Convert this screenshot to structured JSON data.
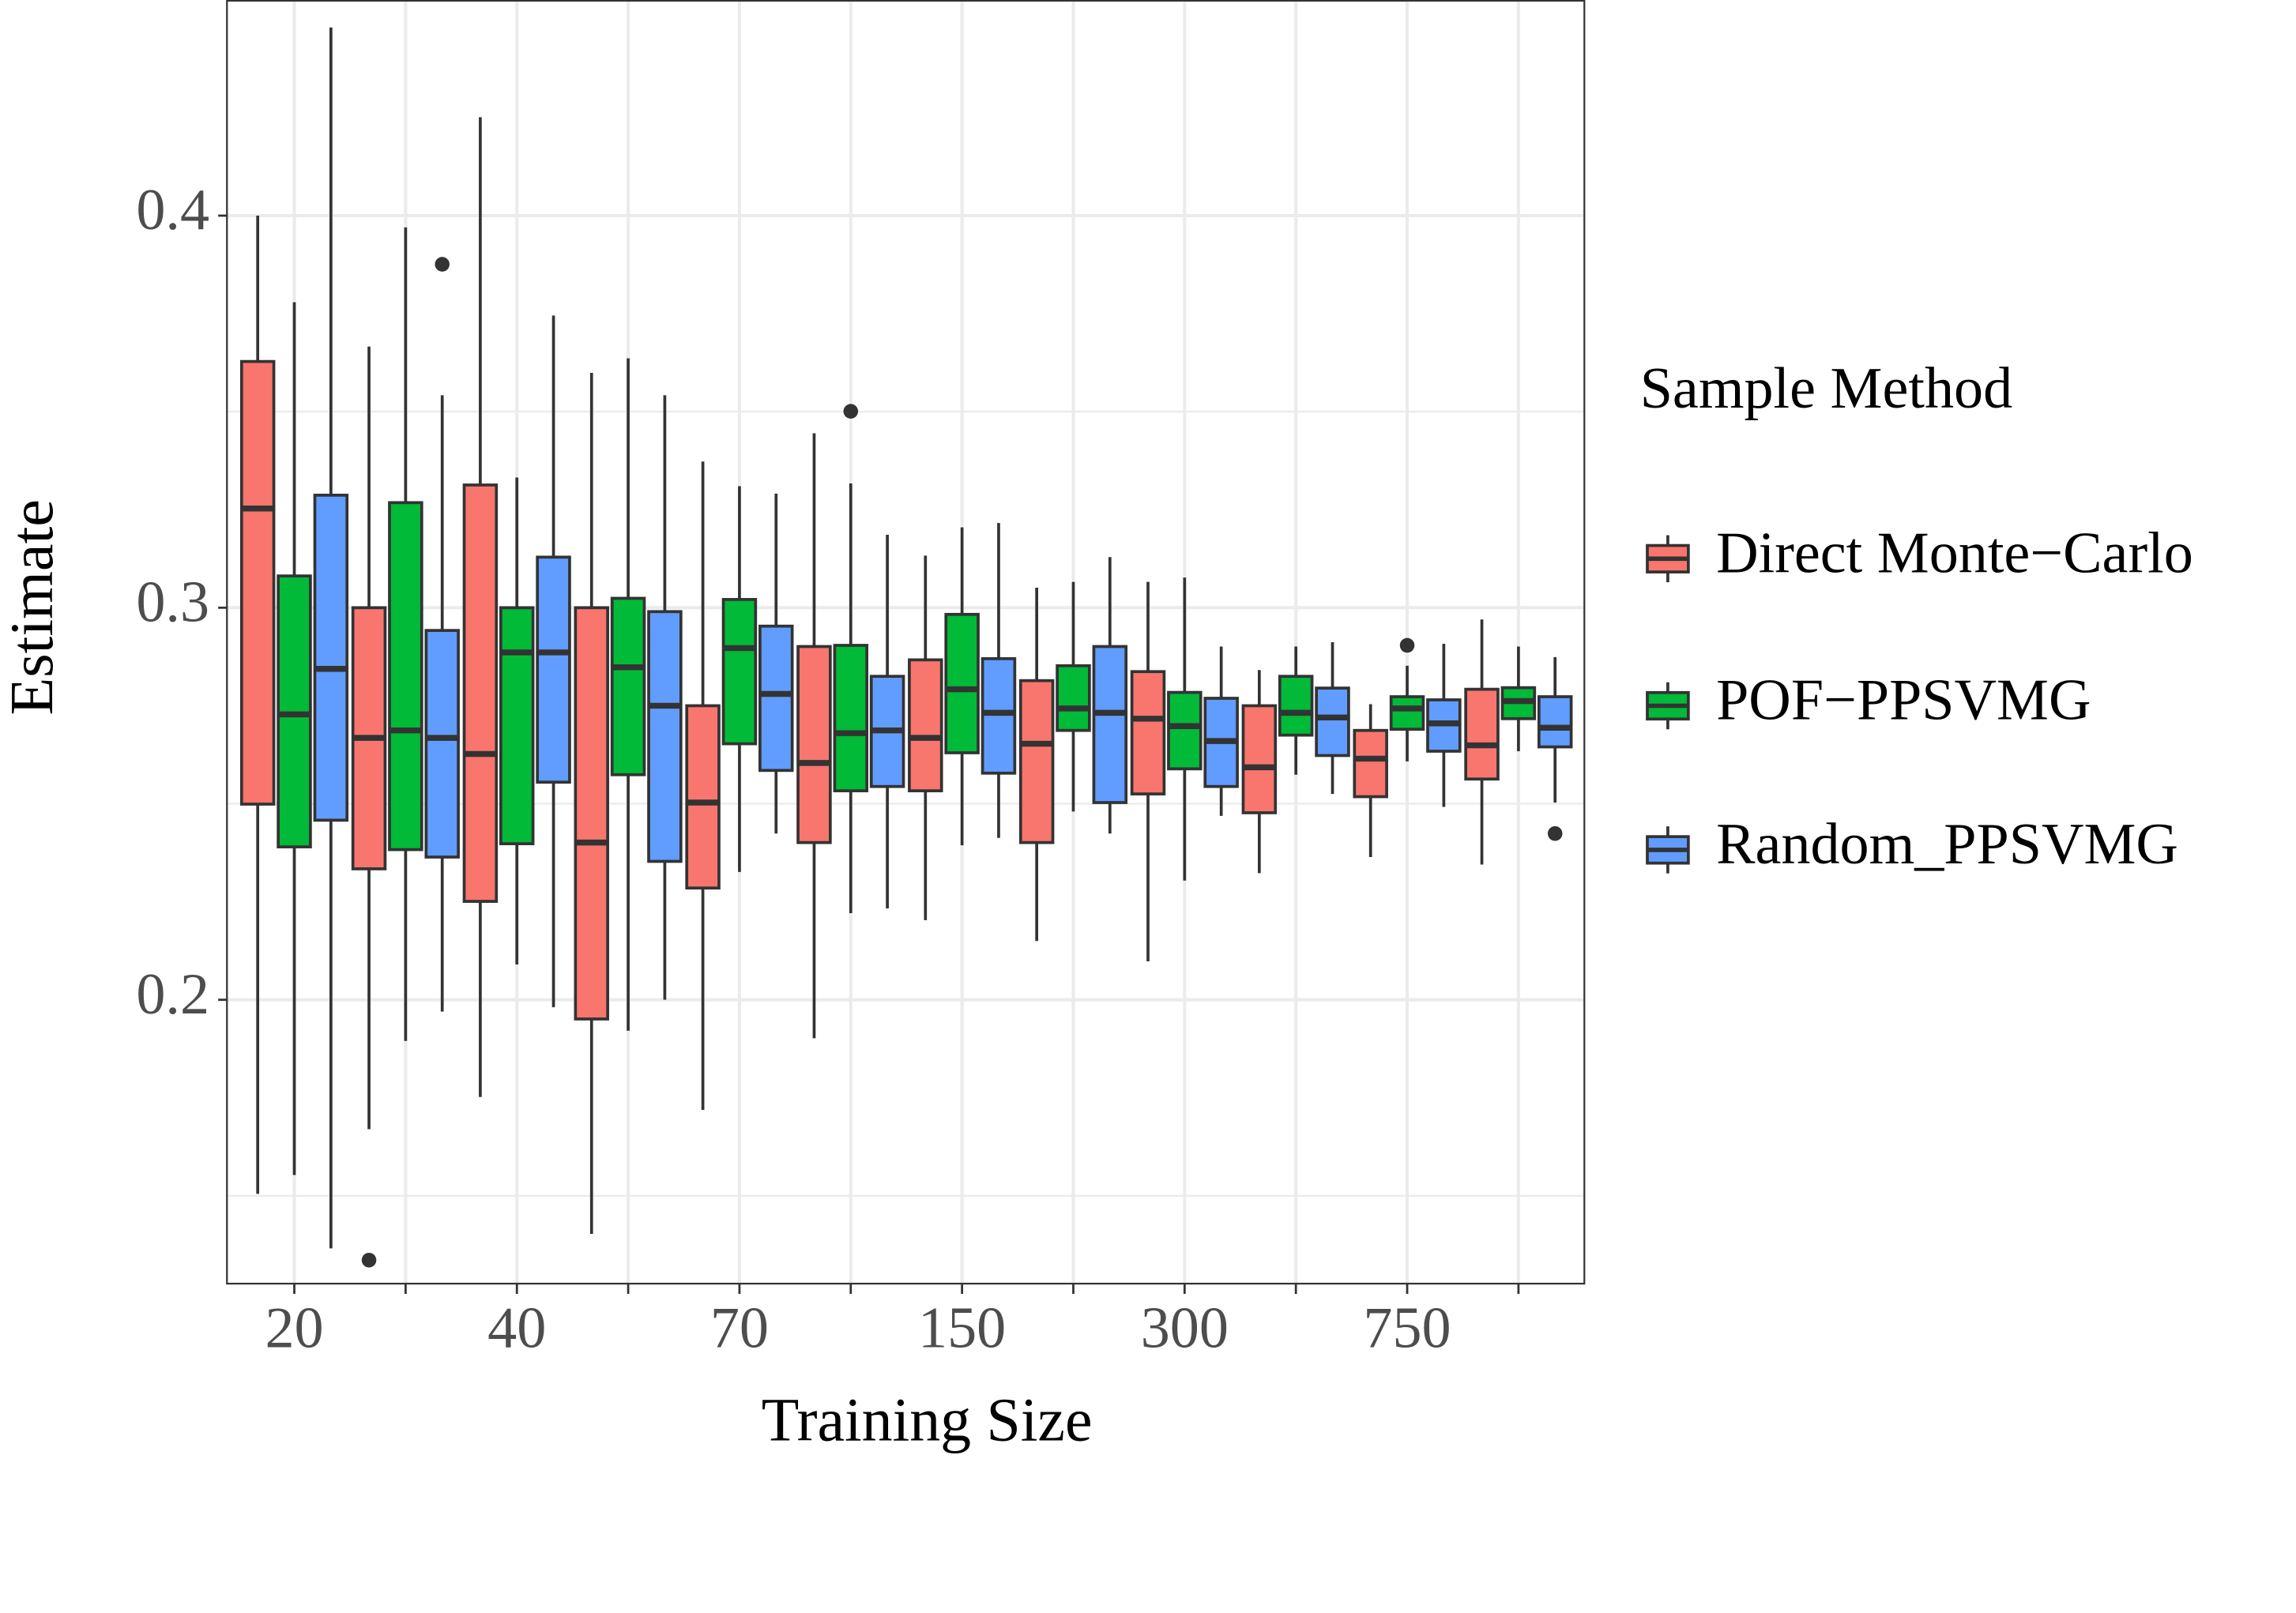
{
  "chart_data": {
    "type": "boxplot",
    "x_label": "Training Size",
    "y_label": "Estimate",
    "legend_title": "Sample Method",
    "legend_position": "right",
    "categories": [
      "20",
      null,
      "40",
      null,
      "70",
      null,
      "150",
      null,
      "300",
      null,
      "750",
      null
    ],
    "ylim": [
      0.1276,
      0.455
    ],
    "yticks": [
      0.2,
      0.3,
      0.4
    ],
    "y_minor_grid": [
      0.15,
      0.25,
      0.35
    ],
    "grid": true,
    "series": [
      {
        "name": "Direct Monte−Carlo",
        "color": "#F8766D",
        "low": [
          0.1505,
          0.167,
          0.1752,
          0.1403,
          0.1719,
          0.1902,
          0.2203,
          0.215,
          0.2098,
          0.2323,
          0.2364,
          0.2345
        ],
        "q1": [
          0.2499,
          0.2334,
          0.2251,
          0.1951,
          0.2285,
          0.2401,
          0.2533,
          0.2401,
          0.2525,
          0.2477,
          0.2518,
          0.2563
        ],
        "median": [
          0.3253,
          0.2668,
          0.2627,
          0.2401,
          0.2503,
          0.2604,
          0.2668,
          0.2653,
          0.2717,
          0.2593,
          0.2615,
          0.2649
        ],
        "q3": [
          0.3628,
          0.3,
          0.3313,
          0.3,
          0.275,
          0.2901,
          0.2867,
          0.2814,
          0.2837,
          0.275,
          0.2687,
          0.2792
        ],
        "high": [
          0.4,
          0.3666,
          0.4251,
          0.3599,
          0.3373,
          0.3445,
          0.3133,
          0.3051,
          0.3066,
          0.2841,
          0.2754,
          0.297
        ],
        "outliers": [
          null,
          0.1336,
          null,
          null,
          null,
          null,
          null,
          null,
          null,
          null,
          null,
          null
        ]
      },
      {
        "name": "POF−PPSVMG",
        "color": "#00BA38",
        "low": [
          0.1553,
          0.1895,
          0.209,
          0.1921,
          0.2326,
          0.2221,
          0.2394,
          0.248,
          0.2304,
          0.2574,
          0.2608,
          0.2634
        ],
        "q1": [
          0.239,
          0.2383,
          0.2398,
          0.2574,
          0.2653,
          0.2533,
          0.263,
          0.2687,
          0.2589,
          0.2675,
          0.269,
          0.2717
        ],
        "median": [
          0.2728,
          0.2687,
          0.2886,
          0.2848,
          0.2897,
          0.268,
          0.2792,
          0.2743,
          0.2698,
          0.2732,
          0.2743,
          0.2762
        ],
        "q3": [
          0.3081,
          0.3268,
          0.3,
          0.3024,
          0.3021,
          0.2904,
          0.2983,
          0.2852,
          0.2784,
          0.2825,
          0.2773,
          0.2796
        ],
        "high": [
          0.3779,
          0.397,
          0.3332,
          0.3636,
          0.331,
          0.3317,
          0.3205,
          0.3066,
          0.3077,
          0.2901,
          0.2852,
          0.2901
        ],
        "outliers": [
          null,
          null,
          null,
          null,
          null,
          0.3501,
          null,
          null,
          null,
          null,
          0.2904,
          null
        ]
      },
      {
        "name": "Random_PPSVMG",
        "color": "#619CFF",
        "low": [
          0.1366,
          0.197,
          0.1981,
          0.2,
          0.2424,
          0.2233,
          0.2413,
          0.2424,
          0.2469,
          0.2525,
          0.2492,
          0.2503
        ],
        "q1": [
          0.2458,
          0.2364,
          0.2555,
          0.2353,
          0.2585,
          0.2544,
          0.2578,
          0.2503,
          0.2544,
          0.2623,
          0.2634,
          0.2645
        ],
        "median": [
          0.2844,
          0.2668,
          0.2886,
          0.275,
          0.278,
          0.2687,
          0.2732,
          0.2732,
          0.266,
          0.272,
          0.2705,
          0.2694
        ],
        "q3": [
          0.3287,
          0.2942,
          0.3129,
          0.299,
          0.2953,
          0.2825,
          0.287,
          0.2901,
          0.2769,
          0.2795,
          0.2765,
          0.2773
        ],
        "high": [
          0.448,
          0.3542,
          0.3745,
          0.3542,
          0.3291,
          0.3186,
          0.3216,
          0.3129,
          0.2901,
          0.2912,
          0.2908,
          0.2874
        ],
        "outliers": [
          null,
          0.3876,
          null,
          null,
          null,
          null,
          null,
          null,
          null,
          null,
          null,
          0.2424
        ]
      }
    ]
  }
}
